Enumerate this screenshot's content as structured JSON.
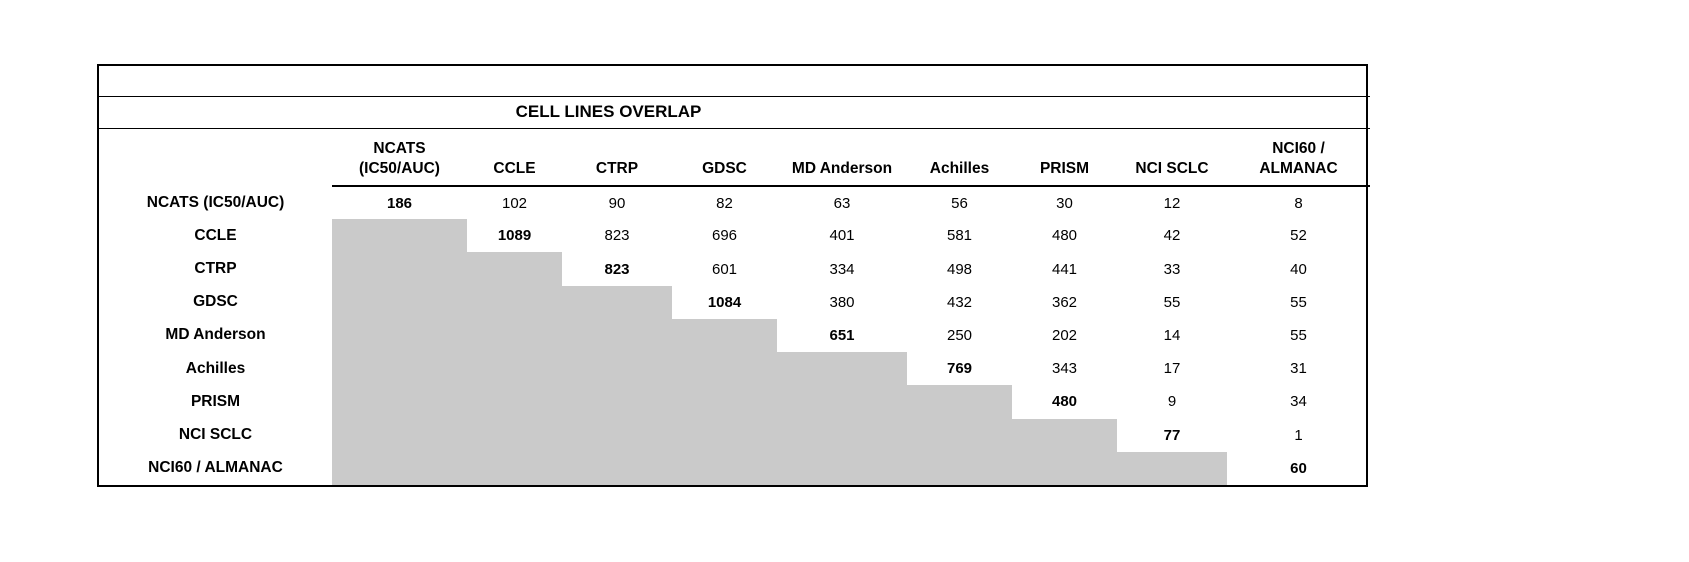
{
  "title": "CELL LINES OVERLAP",
  "chart_data": {
    "type": "table",
    "title": "CELL LINES OVERLAP",
    "column_headers": [
      [
        "NCATS",
        "(IC50/AUC)"
      ],
      [
        "CCLE"
      ],
      [
        "CTRP"
      ],
      [
        "GDSC"
      ],
      [
        "MD Anderson"
      ],
      [
        "Achilles"
      ],
      [
        "PRISM"
      ],
      [
        "NCI SCLC"
      ],
      [
        "NCI60 /",
        "ALMANAC"
      ]
    ],
    "row_labels": [
      "NCATS (IC50/AUC)",
      "CCLE",
      "CTRP",
      "GDSC",
      "MD Anderson",
      "Achilles",
      "PRISM",
      "NCI SCLC",
      "NCI60 / ALMANAC"
    ],
    "matrix": [
      [
        186,
        102,
        90,
        82,
        63,
        56,
        30,
        12,
        8
      ],
      [
        null,
        1089,
        823,
        696,
        401,
        581,
        480,
        42,
        52
      ],
      [
        null,
        null,
        823,
        601,
        334,
        498,
        441,
        33,
        40
      ],
      [
        null,
        null,
        null,
        1084,
        380,
        432,
        362,
        55,
        55
      ],
      [
        null,
        null,
        null,
        null,
        651,
        250,
        202,
        14,
        55
      ],
      [
        null,
        null,
        null,
        null,
        null,
        769,
        343,
        17,
        31
      ],
      [
        null,
        null,
        null,
        null,
        null,
        null,
        480,
        9,
        34
      ],
      [
        null,
        null,
        null,
        null,
        null,
        null,
        null,
        77,
        1
      ],
      [
        null,
        null,
        null,
        null,
        null,
        null,
        null,
        null,
        60
      ]
    ],
    "diagonal_bold": true,
    "shading": "lower-triangle",
    "shaded_color": "#cacaca",
    "legend_position": "none",
    "grid": "outer-border-and-header-rules-only"
  }
}
